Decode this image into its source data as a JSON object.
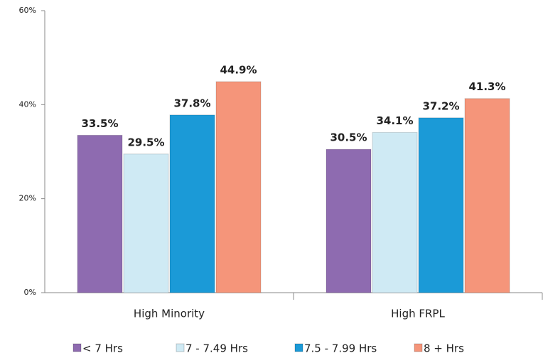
{
  "chart_data": {
    "type": "bar",
    "categories": [
      "High Minority",
      "High FRPL"
    ],
    "series": [
      {
        "name": "< 7 Hrs",
        "color": "#8e6bb0",
        "values": [
          33.5,
          30.5
        ],
        "value_labels": [
          "33.5%",
          "30.5%"
        ]
      },
      {
        "name": "7 - 7.49 Hrs",
        "color": "#cfeaf4",
        "values": [
          29.5,
          34.1
        ],
        "value_labels": [
          "29.5%",
          "34.1%"
        ]
      },
      {
        "name": "7.5 - 7.99 Hrs",
        "color": "#1b9ad7",
        "values": [
          37.8,
          37.2
        ],
        "value_labels": [
          "37.8%",
          "37.2%"
        ]
      },
      {
        "name": "8 + Hrs",
        "color": "#f5957a",
        "values": [
          44.9,
          41.3
        ],
        "value_labels": [
          "44.9%",
          "41.3%"
        ]
      }
    ],
    "ylim": [
      0,
      60
    ],
    "yticks": [
      {
        "value": 0,
        "label": "0%"
      },
      {
        "value": 20,
        "label": "20%"
      },
      {
        "value": 40,
        "label": "40%"
      },
      {
        "value": 60,
        "label": "60%"
      }
    ],
    "legend": "bottom"
  }
}
